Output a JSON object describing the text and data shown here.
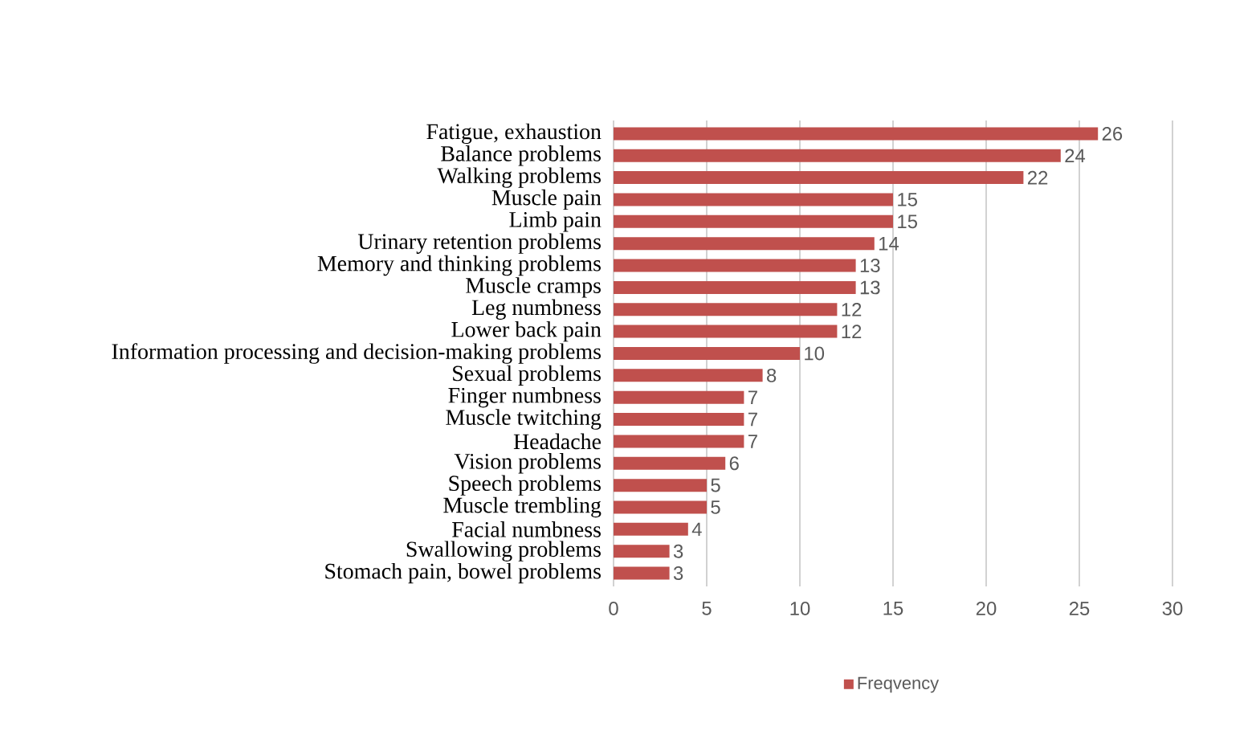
{
  "chart_data": {
    "type": "bar",
    "orientation": "horizontal",
    "categories": [
      "Fatigue, exhaustion",
      "Balance problems",
      "Walking problems",
      "Muscle pain",
      "Limb pain",
      "Urinary retention problems",
      "Memory and thinking problems",
      "Muscle cramps",
      "Leg numbness",
      "Lower back pain",
      "Information processing and decision-making problems",
      "Sexual problems",
      "Finger numbness",
      "Muscle twitching",
      "Headache",
      "Vision problems",
      "Speech problems",
      "Muscle trembling",
      "Facial numbness",
      "Swallowing problems",
      "Stomach pain, bowel problems"
    ],
    "series": [
      {
        "name": "Freqvency",
        "color": "#c0504d",
        "values": [
          26,
          24,
          22,
          15,
          15,
          14,
          13,
          13,
          12,
          12,
          10,
          8,
          7,
          7,
          7,
          6,
          5,
          5,
          4,
          3,
          3
        ]
      }
    ],
    "xlim": [
      0,
      30
    ],
    "xticks": [
      0,
      5,
      10,
      15,
      20,
      25,
      30
    ],
    "grid": "x",
    "legend": "bottom",
    "data_labels": true
  }
}
